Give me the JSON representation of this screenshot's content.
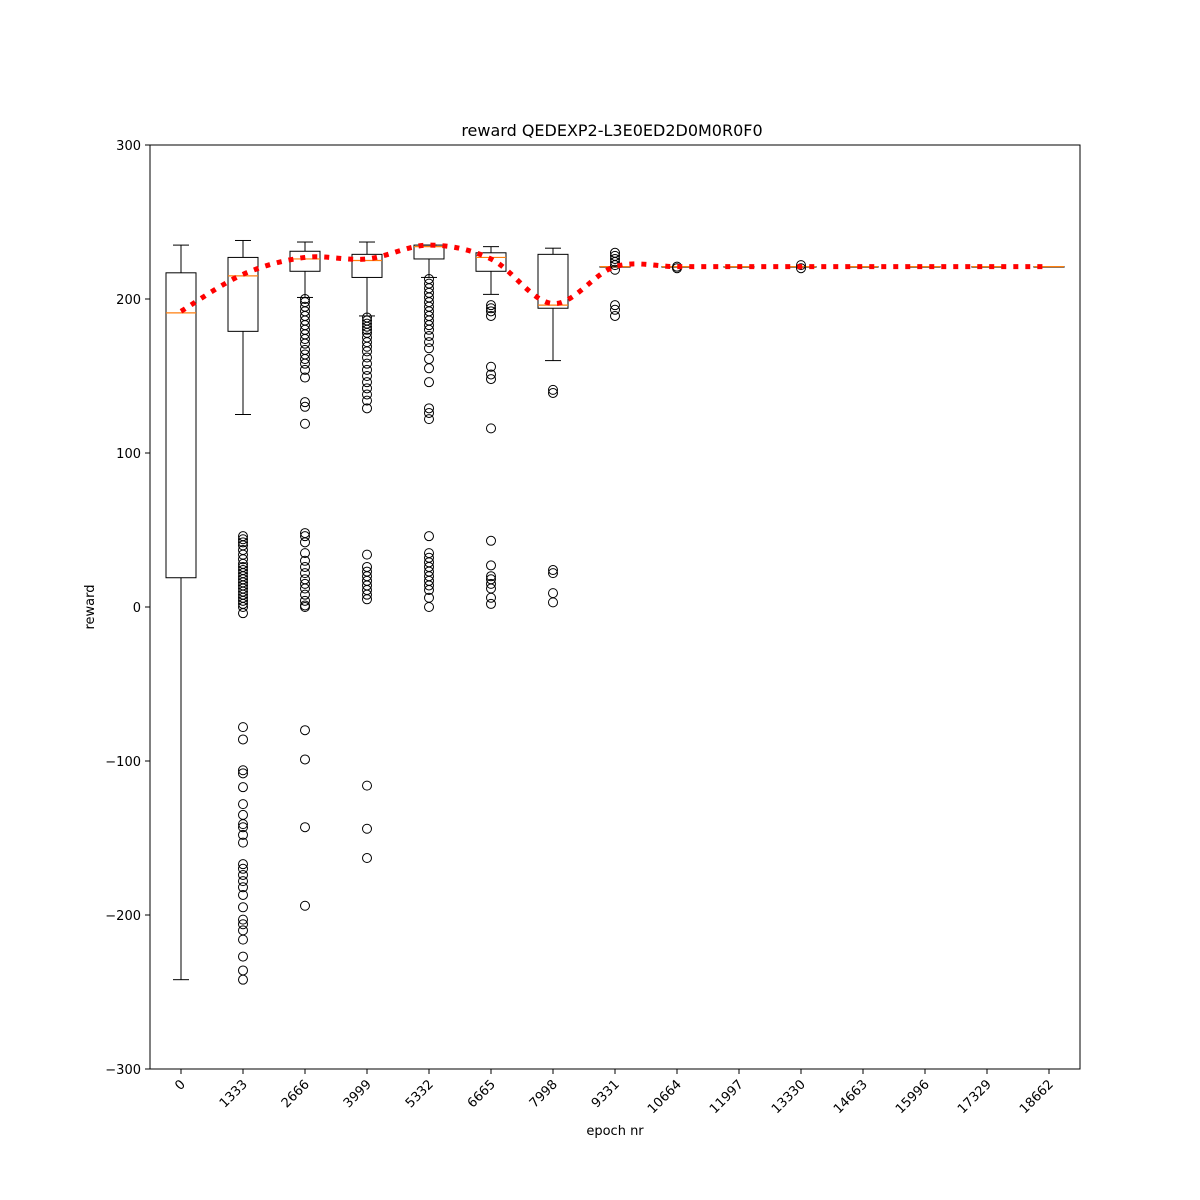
{
  "chart_data": {
    "type": "box",
    "title": "reward QEDEXP2-L3E0ED2D0M0R0F0",
    "xlabel": "epoch nr",
    "ylabel": "reward",
    "ylim": [
      -300,
      300
    ],
    "yticks": [
      -300,
      -200,
      -100,
      0,
      100,
      200,
      300
    ],
    "ytick_labels": [
      "−300",
      "−200",
      "−100",
      "0",
      "100",
      "200",
      "300"
    ],
    "categories": [
      "0",
      "1333",
      "2666",
      "3999",
      "5332",
      "6665",
      "7998",
      "9331",
      "10664",
      "11997",
      "13330",
      "14663",
      "15996",
      "17329",
      "18662"
    ],
    "box_color": "#000000",
    "median_color": "#ff7f0e",
    "mean_line_color": "#ff0000",
    "boxes": [
      {
        "q1": 19,
        "median": 191,
        "q3": 217,
        "whisker_low": -242,
        "whisker_high": 235,
        "outliers": []
      },
      {
        "q1": 179,
        "median": 215,
        "q3": 227,
        "whisker_low": 125,
        "whisker_high": 238,
        "outliers": [
          46,
          44,
          42,
          40,
          37,
          34,
          31,
          28,
          26,
          24,
          22,
          20,
          18,
          16,
          14,
          12,
          10,
          8,
          6,
          4,
          2,
          0,
          -4,
          -78,
          -86,
          -106,
          -108,
          -117,
          -128,
          -135,
          -141,
          -143,
          -148,
          -153,
          -167,
          -170,
          -174,
          -178,
          -182,
          -187,
          -195,
          -203,
          -206,
          -210,
          -216,
          -227,
          -236,
          -242
        ]
      },
      {
        "q1": 218,
        "median": 226,
        "q3": 231,
        "whisker_low": 201,
        "whisker_high": 237,
        "outliers": [
          200,
          198,
          195,
          192,
          189,
          186,
          183,
          180,
          177,
          174,
          171,
          167,
          164,
          161,
          158,
          154,
          149,
          133,
          130,
          119,
          48,
          46,
          42,
          35,
          30,
          26,
          22,
          18,
          15,
          12,
          8,
          4,
          1,
          0,
          -80,
          -99,
          -143,
          -194
        ]
      },
      {
        "q1": 214,
        "median": 225,
        "q3": 229,
        "whisker_low": 189,
        "whisker_high": 237,
        "outliers": [
          188,
          186,
          184,
          182,
          180,
          178,
          175,
          172,
          169,
          166,
          162,
          158,
          154,
          150,
          146,
          142,
          138,
          134,
          129,
          34,
          26,
          23,
          20,
          17,
          14,
          11,
          8,
          5,
          -116,
          -144,
          -163
        ]
      },
      {
        "q1": 226,
        "median": 234,
        "q3": 235,
        "whisker_low": 214,
        "whisker_high": 235,
        "outliers": [
          213,
          210,
          207,
          204,
          201,
          198,
          195,
          192,
          189,
          186,
          183,
          180,
          176,
          172,
          168,
          161,
          155,
          146,
          129,
          126,
          122,
          46,
          35,
          32,
          29,
          26,
          23,
          20,
          17,
          14,
          11,
          6,
          0
        ]
      },
      {
        "q1": 218,
        "median": 227,
        "q3": 230,
        "whisker_low": 203,
        "whisker_high": 234,
        "outliers": [
          196,
          194,
          192,
          189,
          156,
          151,
          148,
          116,
          43,
          27,
          20,
          18,
          15,
          12,
          6,
          2
        ]
      },
      {
        "q1": 194,
        "median": 196,
        "q3": 229,
        "whisker_low": 160,
        "whisker_high": 233,
        "outliers": [
          141,
          139,
          24,
          22,
          9,
          3
        ]
      },
      {
        "q1": 221,
        "median": 221,
        "q3": 221,
        "whisker_low": 221,
        "whisker_high": 221,
        "outliers": [
          230,
          228,
          226,
          224,
          222,
          219,
          196,
          193,
          189
        ]
      },
      {
        "q1": 221,
        "median": 221,
        "q3": 221,
        "whisker_low": 221,
        "whisker_high": 221,
        "outliers": [
          221,
          220
        ]
      },
      {
        "q1": 221,
        "median": 221,
        "q3": 221,
        "whisker_low": 221,
        "whisker_high": 221,
        "outliers": []
      },
      {
        "q1": 221,
        "median": 221,
        "q3": 221,
        "whisker_low": 221,
        "whisker_high": 221,
        "outliers": [
          222,
          220
        ]
      },
      {
        "q1": 221,
        "median": 221,
        "q3": 221,
        "whisker_low": 221,
        "whisker_high": 221,
        "outliers": []
      },
      {
        "q1": 221,
        "median": 221,
        "q3": 221,
        "whisker_low": 221,
        "whisker_high": 221,
        "outliers": []
      },
      {
        "q1": 221,
        "median": 221,
        "q3": 221,
        "whisker_low": 221,
        "whisker_high": 221,
        "outliers": []
      },
      {
        "q1": 221,
        "median": 221,
        "q3": 221,
        "whisker_low": 221,
        "whisker_high": 221,
        "outliers": []
      }
    ],
    "mean_line": [
      192,
      216,
      227,
      226,
      235,
      226,
      197,
      221,
      221,
      221,
      221,
      221,
      221,
      221,
      221
    ]
  }
}
